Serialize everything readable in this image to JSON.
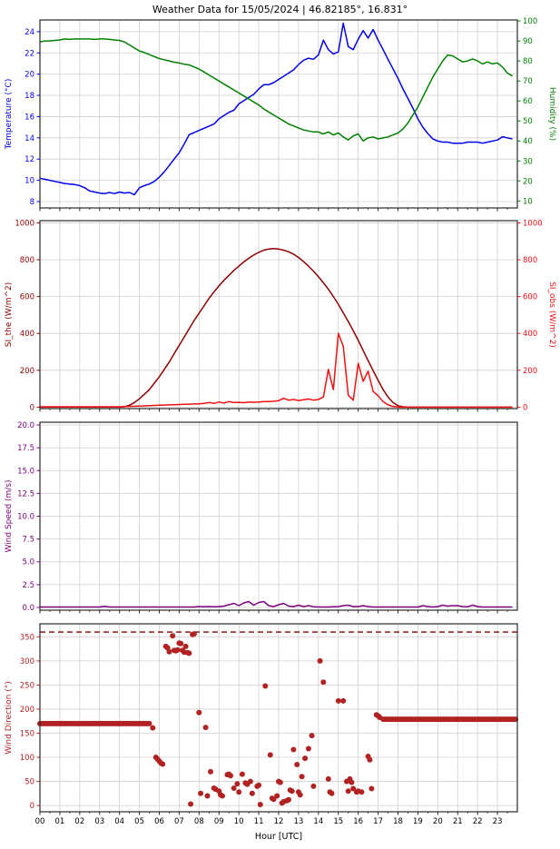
{
  "title": "Weather Data for 15/05/2024 | 46.82185°, 16.831°",
  "xlabel": "Hour [UTC]",
  "x_tick_labels": [
    "00",
    "01",
    "02",
    "03",
    "04",
    "05",
    "06",
    "07",
    "08",
    "09",
    "10",
    "11",
    "12",
    "13",
    "14",
    "15",
    "16",
    "17",
    "18",
    "19",
    "20",
    "21",
    "22",
    "23"
  ],
  "colors": {
    "grid": "#cfcfcf",
    "spine": "#2a2a2a",
    "xtick_text": "#000000",
    "temperature": "#0000e8",
    "humidity": "#007f00",
    "si_the": "#8b0000",
    "si_obs": "#ee1111",
    "wind_speed": "#7d007d",
    "wind_direction": "#b22222",
    "hline": "#8b0000"
  },
  "chart_data": [
    {
      "name": "temperature-humidity",
      "type": "line",
      "left_axis": {
        "label": "Temperature (°C)",
        "color": "#0000e8",
        "ylim": [
          7.4,
          25.1
        ],
        "tick_values": [
          8,
          10,
          12,
          14,
          16,
          18,
          20,
          22,
          24
        ],
        "tick_labels": [
          "8",
          "10",
          "12",
          "14",
          "16",
          "18",
          "20",
          "22",
          "24"
        ]
      },
      "right_axis": {
        "label": "Humidity (%)",
        "color": "#007f00",
        "ylim": [
          6.5,
          100.5
        ],
        "tick_values": [
          10,
          20,
          30,
          40,
          50,
          60,
          70,
          80,
          90,
          100
        ],
        "tick_labels": [
          "10",
          "20",
          "30",
          "40",
          "50",
          "60",
          "70",
          "80",
          "90",
          "100"
        ]
      },
      "series": [
        {
          "name": "temperature",
          "axis": "left",
          "color": "#0000e8",
          "t0": 0,
          "dt": 0.25,
          "values": [
            10.2,
            10.1,
            10.0,
            9.9,
            9.8,
            9.7,
            9.65,
            9.6,
            9.5,
            9.3,
            9.0,
            8.9,
            8.8,
            8.75,
            8.85,
            8.75,
            8.9,
            8.8,
            8.85,
            8.65,
            9.3,
            9.5,
            9.65,
            9.9,
            10.3,
            10.8,
            11.4,
            12.0,
            12.6,
            13.4,
            14.3,
            14.5,
            14.7,
            14.9,
            15.1,
            15.3,
            15.8,
            16.1,
            16.4,
            16.6,
            17.2,
            17.5,
            17.8,
            18.1,
            18.6,
            19.0,
            19.0,
            19.2,
            19.5,
            19.8,
            20.1,
            20.4,
            20.9,
            21.3,
            21.5,
            21.4,
            21.8,
            23.2,
            22.3,
            21.9,
            22.1,
            24.8,
            22.6,
            22.3,
            23.3,
            24.1,
            23.4,
            24.2,
            23.2,
            22.3,
            21.4,
            20.5,
            19.6,
            18.6,
            17.7,
            16.8,
            15.8,
            15.0,
            14.4,
            13.9,
            13.7,
            13.6,
            13.6,
            13.5,
            13.5,
            13.5,
            13.6,
            13.6,
            13.6,
            13.5,
            13.6,
            13.7,
            13.8,
            14.1,
            14.0,
            13.9
          ]
        },
        {
          "name": "humidity",
          "axis": "right",
          "color": "#007f00",
          "t0": 0,
          "dt": 0.25,
          "values": [
            89.5,
            90,
            90,
            90.3,
            90.5,
            91,
            90.8,
            91,
            91,
            91,
            91,
            90.8,
            91,
            91,
            90.8,
            90.5,
            90.3,
            89.5,
            88,
            86.5,
            85,
            84.2,
            83.2,
            82.2,
            81.2,
            80.6,
            80,
            79.4,
            79,
            78.4,
            78,
            77,
            76,
            74.5,
            73,
            71.5,
            70,
            68.5,
            67,
            65.5,
            64,
            62.5,
            61,
            59.5,
            58,
            56,
            54.5,
            53,
            51.5,
            50,
            48.5,
            47.5,
            46.5,
            45.5,
            45,
            44.5,
            44.5,
            43.5,
            44.5,
            43,
            44,
            42,
            40.5,
            42.5,
            43.5,
            40,
            41.5,
            42,
            41,
            41.5,
            42,
            43,
            44,
            46,
            49,
            53,
            57,
            62,
            67,
            72,
            76,
            80,
            83,
            82.5,
            81,
            79.5,
            80,
            81,
            80,
            78.5,
            79.5,
            78.5,
            79,
            77,
            74,
            72.5
          ]
        }
      ]
    },
    {
      "name": "solar-irradiance",
      "type": "line",
      "left_axis": {
        "label": "SI_the (W/m^2)",
        "color": "#8b0000",
        "ylim": [
          -8,
          1012
        ],
        "tick_values": [
          0,
          200,
          400,
          600,
          800,
          1000
        ],
        "tick_labels": [
          "0",
          "200",
          "400",
          "600",
          "800",
          "1000"
        ]
      },
      "right_axis": {
        "label": "SI_obs (W/m^2)",
        "color": "#ee1111",
        "ylim": [
          -8,
          1012
        ],
        "tick_values": [
          0,
          200,
          400,
          600,
          800,
          1000
        ],
        "tick_labels": [
          "0",
          "200",
          "400",
          "600",
          "800",
          "1000"
        ]
      },
      "series": [
        {
          "name": "si-theoretical",
          "axis": "left",
          "color": "#8b0000",
          "t0": 0,
          "dt": 0.25,
          "values": [
            0,
            0,
            0,
            0,
            0,
            0,
            0,
            0,
            0,
            0,
            0,
            0,
            0,
            0,
            0,
            0,
            0,
            2,
            10,
            25,
            45,
            70,
            95,
            130,
            165,
            205,
            245,
            290,
            335,
            380,
            425,
            470,
            510,
            550,
            590,
            625,
            658,
            688,
            715,
            742,
            765,
            788,
            808,
            825,
            840,
            852,
            858,
            860,
            858,
            852,
            843,
            830,
            812,
            790,
            765,
            738,
            708,
            675,
            640,
            600,
            558,
            512,
            465,
            415,
            362,
            308,
            252,
            198,
            145,
            95,
            55,
            25,
            8,
            2,
            0,
            0,
            0,
            0,
            0,
            0,
            0,
            0,
            0,
            0,
            0,
            0,
            0,
            0,
            0,
            0,
            0,
            0,
            0,
            0,
            0,
            0
          ]
        },
        {
          "name": "si-observed",
          "axis": "right",
          "color": "#ee1111",
          "t0": 0,
          "dt": 0.25,
          "values": [
            2,
            2,
            2,
            2,
            2,
            2,
            2,
            2,
            2,
            2,
            2,
            2,
            2,
            2,
            2,
            2,
            2,
            3,
            4,
            5,
            6,
            7,
            8,
            9,
            10,
            11,
            12,
            13,
            14,
            15,
            16,
            17,
            18,
            20,
            25,
            20,
            28,
            22,
            30,
            25,
            26,
            24,
            28,
            26,
            28,
            30,
            30,
            32,
            35,
            48,
            38,
            42,
            36,
            40,
            44,
            38,
            42,
            55,
            205,
            95,
            400,
            330,
            65,
            38,
            238,
            140,
            195,
            85,
            62,
            30,
            12,
            4,
            1,
            0,
            0,
            0,
            0,
            0,
            0,
            0,
            0,
            0,
            0,
            0,
            0,
            0,
            0,
            0,
            0,
            0,
            0,
            0,
            0,
            0,
            0,
            0
          ]
        }
      ]
    },
    {
      "name": "wind-speed",
      "type": "line",
      "left_axis": {
        "label": "Wind Speed (m/s)",
        "color": "#7d007d",
        "ylim": [
          -0.3,
          20.3
        ],
        "tick_values": [
          0,
          2.5,
          5,
          7.5,
          10,
          12.5,
          15,
          17.5,
          20
        ],
        "tick_labels": [
          "0.0",
          "2.5",
          "5.0",
          "7.5",
          "10.0",
          "12.5",
          "15.0",
          "17.5",
          "20.0"
        ]
      },
      "right_axis": null,
      "series": [
        {
          "name": "wind-speed",
          "axis": "left",
          "color": "#7d007d",
          "t0": 0,
          "dt": 0.25,
          "values": [
            0.05,
            0.05,
            0.05,
            0.05,
            0.05,
            0.05,
            0.05,
            0.05,
            0.05,
            0.05,
            0.05,
            0.05,
            0.05,
            0.12,
            0.05,
            0.05,
            0.05,
            0.05,
            0.05,
            0.05,
            0.05,
            0.05,
            0.05,
            0.05,
            0.05,
            0.05,
            0.05,
            0.05,
            0.05,
            0.05,
            0.05,
            0.05,
            0.1,
            0.08,
            0.1,
            0.08,
            0.1,
            0.15,
            0.3,
            0.45,
            0.2,
            0.5,
            0.65,
            0.25,
            0.55,
            0.65,
            0.2,
            0.1,
            0.3,
            0.45,
            0.15,
            0.1,
            0.25,
            0.1,
            0.2,
            0.08,
            0.05,
            0.05,
            0.05,
            0.08,
            0.1,
            0.2,
            0.25,
            0.1,
            0.1,
            0.2,
            0.1,
            0.05,
            0.05,
            0.05,
            0.05,
            0.05,
            0.05,
            0.05,
            0.05,
            0.05,
            0.05,
            0.2,
            0.1,
            0.05,
            0.1,
            0.25,
            0.15,
            0.2,
            0.2,
            0.1,
            0.08,
            0.25,
            0.1,
            0.05,
            0.05,
            0.05,
            0.05,
            0.05,
            0.05,
            0.05
          ]
        }
      ]
    },
    {
      "name": "wind-direction",
      "type": "scatter",
      "left_axis": {
        "label": "Wind Direction (°)",
        "color": "#b22222",
        "ylim": [
          -13,
          377
        ],
        "tick_values": [
          0,
          50,
          100,
          150,
          200,
          250,
          300,
          350
        ],
        "tick_labels": [
          "0",
          "50",
          "100",
          "150",
          "200",
          "250",
          "300",
          "350"
        ]
      },
      "right_axis": null,
      "hline": {
        "y": 360,
        "style": "dashed",
        "color": "#8b0000"
      },
      "scatter": {
        "name": "wind-direction",
        "color": "#b22222",
        "dense_runs": [
          {
            "from": 0,
            "to": 5.58,
            "step": 0.0833,
            "value": 170
          },
          {
            "from": 17.25,
            "to": 23.93,
            "step": 0.0833,
            "value": 179
          }
        ],
        "points": [
          [
            5.67,
            161
          ],
          [
            5.83,
            100
          ],
          [
            5.92,
            96
          ],
          [
            6.0,
            92
          ],
          [
            6.08,
            88
          ],
          [
            6.17,
            86
          ],
          [
            6.33,
            330
          ],
          [
            6.42,
            327
          ],
          [
            6.5,
            319
          ],
          [
            6.67,
            352
          ],
          [
            6.75,
            322
          ],
          [
            6.83,
            321
          ],
          [
            6.92,
            323
          ],
          [
            7.0,
            337
          ],
          [
            7.08,
            336
          ],
          [
            7.17,
            322
          ],
          [
            7.25,
            318
          ],
          [
            7.33,
            330
          ],
          [
            7.42,
            317
          ],
          [
            7.5,
            316
          ],
          [
            7.58,
            3
          ],
          [
            7.67,
            355
          ],
          [
            7.75,
            356
          ],
          [
            8.0,
            193
          ],
          [
            8.08,
            25
          ],
          [
            8.33,
            162
          ],
          [
            8.42,
            20
          ],
          [
            8.58,
            70
          ],
          [
            8.75,
            36
          ],
          [
            8.83,
            34
          ],
          [
            9.0,
            30
          ],
          [
            9.08,
            22
          ],
          [
            9.17,
            20
          ],
          [
            9.42,
            64
          ],
          [
            9.5,
            65
          ],
          [
            9.58,
            62
          ],
          [
            9.75,
            36
          ],
          [
            9.92,
            45
          ],
          [
            10.0,
            28
          ],
          [
            10.17,
            65
          ],
          [
            10.33,
            47
          ],
          [
            10.42,
            44
          ],
          [
            10.58,
            50
          ],
          [
            10.67,
            25
          ],
          [
            10.92,
            40
          ],
          [
            11.0,
            42
          ],
          [
            11.08,
            2
          ],
          [
            11.33,
            248
          ],
          [
            11.58,
            105
          ],
          [
            11.67,
            15
          ],
          [
            11.75,
            13
          ],
          [
            11.92,
            20
          ],
          [
            12.0,
            50
          ],
          [
            12.08,
            48
          ],
          [
            12.17,
            5
          ],
          [
            12.25,
            8
          ],
          [
            12.42,
            10
          ],
          [
            12.5,
            12
          ],
          [
            12.58,
            32
          ],
          [
            12.67,
            30
          ],
          [
            12.75,
            116
          ],
          [
            12.92,
            85
          ],
          [
            13.0,
            28
          ],
          [
            13.08,
            22
          ],
          [
            13.17,
            60
          ],
          [
            13.33,
            98
          ],
          [
            13.5,
            118
          ],
          [
            13.67,
            145
          ],
          [
            13.75,
            40
          ],
          [
            14.08,
            300
          ],
          [
            14.25,
            256
          ],
          [
            14.5,
            55
          ],
          [
            14.58,
            28
          ],
          [
            14.67,
            25
          ],
          [
            15.0,
            217
          ],
          [
            15.25,
            217
          ],
          [
            15.42,
            50
          ],
          [
            15.5,
            30
          ],
          [
            15.58,
            55
          ],
          [
            15.67,
            48
          ],
          [
            15.75,
            35
          ],
          [
            15.92,
            28
          ],
          [
            16.0,
            30
          ],
          [
            16.17,
            28
          ],
          [
            16.5,
            102
          ],
          [
            16.58,
            95
          ],
          [
            16.67,
            35
          ],
          [
            16.92,
            188
          ],
          [
            17.0,
            186
          ],
          [
            17.08,
            183
          ]
        ]
      }
    }
  ]
}
